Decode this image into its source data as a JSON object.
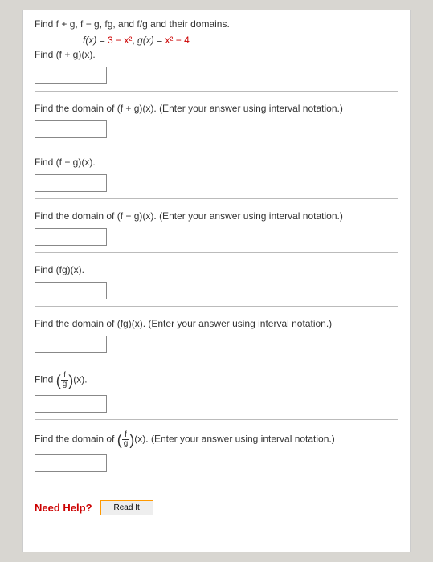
{
  "header": {
    "intro": "Find  f + g,   f − g,   fg,  and  f/g  and their domains.",
    "fx_label": "f(x) = ",
    "fx_value": "3 − x²",
    "comma": ",    ",
    "gx_label": "g(x) = ",
    "gx_value": "x² − 4"
  },
  "q1": {
    "prompt": "Find  (f + g)(x)."
  },
  "q2": {
    "prompt": "Find the domain of  (f + g)(x).  (Enter your answer using interval notation.)"
  },
  "q3": {
    "prompt": "Find  (f − g)(x)."
  },
  "q4": {
    "prompt": "Find the domain of  (f − g)(x).  (Enter your answer using interval notation.)"
  },
  "q5": {
    "prompt": "Find  (fg)(x)."
  },
  "q6": {
    "prompt": "Find the domain of  (fg)(x).  (Enter your answer using interval notation.)"
  },
  "q7": {
    "prefix": "Find  ",
    "frac_top": "f",
    "frac_bot": "g",
    "suffix": "(x)."
  },
  "q8": {
    "prefix": "Find the domain of  ",
    "frac_top": "f",
    "frac_bot": "g",
    "suffix": "(x).  (Enter your answer using interval notation.)"
  },
  "help": {
    "label": "Need Help?",
    "button": "Read It"
  }
}
